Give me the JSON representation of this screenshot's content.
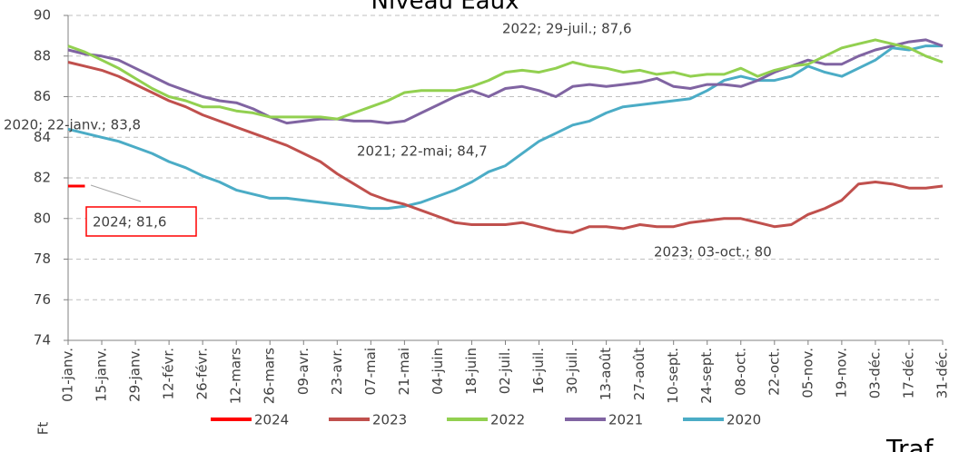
{
  "chart_data": {
    "type": "line",
    "title": "Niveau Eaux",
    "y_label": "Ft",
    "footer_text": "Traf",
    "categories": [
      "01-janv.",
      null,
      "15-janv.",
      null,
      "29-janv.",
      null,
      "12-févr.",
      null,
      "26-févr.",
      null,
      "12-mars",
      null,
      "26-mars",
      null,
      "09-avr.",
      null,
      "23-avr.",
      null,
      "07-mai",
      null,
      "21-mai",
      null,
      "04-juin",
      null,
      "18-juin",
      null,
      "02-juil.",
      null,
      "16-juil.",
      null,
      "30-juil.",
      null,
      "13-août",
      null,
      "27-août",
      null,
      "10-sept.",
      null,
      "24-sept.",
      null,
      "08-oct.",
      null,
      "22-oct.",
      null,
      "05-nov.",
      null,
      "19-nov.",
      null,
      "03-déc.",
      null,
      "17-déc.",
      null,
      "31-déc."
    ],
    "ylim": [
      74,
      90
    ],
    "yticks": [
      74,
      76,
      78,
      80,
      82,
      84,
      86,
      88,
      90
    ],
    "grid": true,
    "series": [
      {
        "name": "2024",
        "color": "#ff0000",
        "values": [
          81.6,
          81.6,
          null,
          null,
          null,
          null,
          null,
          null,
          null,
          null,
          null,
          null,
          null,
          null,
          null,
          null,
          null,
          null,
          null,
          null,
          null,
          null,
          null,
          null,
          null,
          null,
          null,
          null,
          null,
          null,
          null,
          null,
          null,
          null,
          null,
          null,
          null,
          null,
          null,
          null,
          null,
          null,
          null,
          null,
          null,
          null,
          null,
          null,
          null,
          null,
          null,
          null,
          null
        ]
      },
      {
        "name": "2023",
        "color": "#c0504d",
        "values": [
          87.7,
          87.5,
          87.3,
          87.0,
          86.6,
          86.2,
          85.8,
          85.5,
          85.1,
          84.8,
          84.5,
          84.2,
          83.9,
          83.6,
          83.2,
          82.8,
          82.2,
          81.7,
          81.2,
          80.9,
          80.7,
          80.4,
          80.1,
          79.8,
          79.7,
          79.7,
          79.7,
          79.8,
          79.6,
          79.4,
          79.3,
          79.6,
          79.6,
          79.5,
          79.7,
          79.6,
          79.6,
          79.8,
          79.9,
          80.0,
          80.0,
          79.8,
          79.6,
          79.7,
          80.2,
          80.5,
          80.9,
          81.7,
          81.8,
          81.7,
          81.5,
          81.5,
          81.6
        ]
      },
      {
        "name": "2022",
        "color": "#92d050",
        "values": [
          88.5,
          88.2,
          87.8,
          87.4,
          86.9,
          86.4,
          86.0,
          85.8,
          85.5,
          85.5,
          85.3,
          85.2,
          85.0,
          85.0,
          85.0,
          85.0,
          84.9,
          85.2,
          85.5,
          85.8,
          86.2,
          86.3,
          86.3,
          86.3,
          86.5,
          86.8,
          87.2,
          87.3,
          87.2,
          87.4,
          87.7,
          87.5,
          87.4,
          87.2,
          87.3,
          87.1,
          87.2,
          87.0,
          87.1,
          87.1,
          87.4,
          87.0,
          87.3,
          87.5,
          87.6,
          88.0,
          88.4,
          88.6,
          88.8,
          88.6,
          88.4,
          88.0,
          87.7
        ]
      },
      {
        "name": "2021",
        "color": "#8064a2",
        "values": [
          88.3,
          88.1,
          88.0,
          87.8,
          87.4,
          87.0,
          86.6,
          86.3,
          86.0,
          85.8,
          85.7,
          85.4,
          85.0,
          84.7,
          84.8,
          84.9,
          84.9,
          84.8,
          84.8,
          84.7,
          84.8,
          85.2,
          85.6,
          86.0,
          86.3,
          86.0,
          86.4,
          86.5,
          86.3,
          86.0,
          86.5,
          86.6,
          86.5,
          86.6,
          86.7,
          86.9,
          86.5,
          86.4,
          86.6,
          86.6,
          86.5,
          86.8,
          87.2,
          87.5,
          87.8,
          87.6,
          87.6,
          88.0,
          88.3,
          88.5,
          88.7,
          88.8,
          88.5
        ]
      },
      {
        "name": "2020",
        "color": "#4bacc6",
        "values": [
          84.4,
          84.2,
          84.0,
          83.8,
          83.5,
          83.2,
          82.8,
          82.5,
          82.1,
          81.8,
          81.4,
          81.2,
          81.0,
          81.0,
          80.9,
          80.8,
          80.7,
          80.6,
          80.5,
          80.5,
          80.6,
          80.8,
          81.1,
          81.4,
          81.8,
          82.3,
          82.6,
          83.2,
          83.8,
          84.2,
          84.6,
          84.8,
          85.2,
          85.5,
          85.6,
          85.7,
          85.8,
          85.9,
          86.3,
          86.8,
          87.0,
          86.8,
          86.8,
          87.0,
          87.5,
          87.2,
          87.0,
          87.4,
          87.8,
          88.4,
          88.3,
          88.5,
          88.5
        ]
      }
    ],
    "annotations": [
      "2022; 29-juil.; 87,6",
      "2020; 22-janv.; 83,8",
      "2021; 22-mai; 84,7",
      "2024; 81,6",
      "2023; 03-oct.; 80"
    ]
  }
}
